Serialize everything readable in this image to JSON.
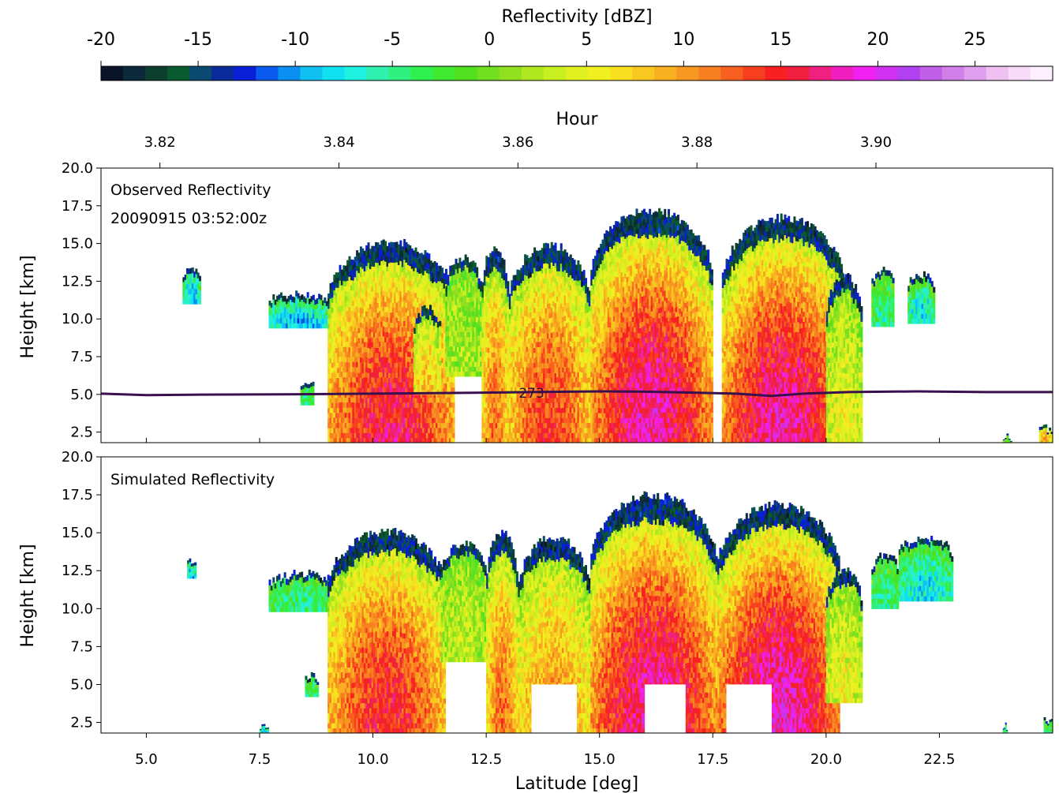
{
  "chart_data": [
    {
      "type": "heatmap",
      "panel": "colorbar",
      "label": "Reflectivity [dBZ]",
      "range": [
        -20,
        29
      ],
      "ticks": [
        -20,
        -15,
        -10,
        -5,
        0,
        5,
        10,
        15,
        20,
        25
      ],
      "colors": [
        "#0a1428",
        "#0c2a3c",
        "#0d3f2e",
        "#0a5a30",
        "#0a4a72",
        "#0a2a9a",
        "#0a1fd8",
        "#0a5af0",
        "#0a90f0",
        "#10c0f0",
        "#10e0f0",
        "#20f0e0",
        "#30f0b0",
        "#30f080",
        "#30f050",
        "#40e830",
        "#50e020",
        "#70e020",
        "#90e020",
        "#b0e820",
        "#c8f020",
        "#e0f020",
        "#f0f020",
        "#f8e020",
        "#f8c820",
        "#f8b020",
        "#f89820",
        "#f88020",
        "#f86020",
        "#f84020",
        "#f82020",
        "#f02040",
        "#f02080",
        "#f020c0",
        "#f020f0",
        "#d030f0",
        "#b040f0",
        "#c060e8",
        "#d080e8",
        "#e0a0f0",
        "#f0c0f0",
        "#f8dcf8",
        "#fff0ff"
      ]
    },
    {
      "type": "heatmap",
      "panel": "top",
      "title_lines": [
        "Observed Reflectivity",
        "20090915 03:52:00z"
      ],
      "ylabel": "Height [km]",
      "xlabel_top": "Hour",
      "xlim": [
        4.0,
        25.0
      ],
      "ylim": [
        1.8,
        20.0
      ],
      "yticks": [
        2.5,
        5.0,
        7.5,
        10.0,
        12.5,
        15.0,
        17.5,
        20.0
      ],
      "ytick_labels": [
        "2.5",
        "5.0",
        "7.5",
        "10.0",
        "12.5",
        "15.0",
        "17.5",
        "20.0"
      ],
      "top_ticks": [
        {
          "hour": 3.82,
          "lat": 5.3,
          "label": "3.82"
        },
        {
          "hour": 3.84,
          "lat": 9.25,
          "label": "3.84"
        },
        {
          "hour": 3.86,
          "lat": 13.2,
          "label": "3.86"
        },
        {
          "hour": 3.88,
          "lat": 17.15,
          "label": "3.88"
        },
        {
          "hour": 3.9,
          "lat": 21.1,
          "label": "3.90"
        }
      ],
      "contour": {
        "label": "273",
        "label_at": [
          13.5,
          5.1
        ],
        "lat": [
          4.0,
          5.0,
          6.0,
          8.0,
          10.0,
          12.0,
          13.5,
          15.0,
          16.0,
          17.0,
          18.0,
          18.8,
          19.5,
          20.5,
          22.0,
          23.5,
          25.0
        ],
        "height": [
          5.05,
          4.95,
          4.98,
          5.0,
          5.05,
          5.1,
          5.15,
          5.2,
          5.18,
          5.12,
          5.05,
          4.9,
          5.05,
          5.15,
          5.2,
          5.15,
          5.15
        ]
      },
      "cells": [
        {
          "lat": [
            5.8,
            6.2
          ],
          "top": 13.6,
          "bottom": 11.0,
          "peak_dbz": -10
        },
        {
          "lat": [
            8.4,
            8.7
          ],
          "top": 6.2,
          "bottom": 4.3,
          "peak_dbz": -5
        },
        {
          "lat": [
            7.7,
            9.0
          ],
          "top": 12.0,
          "bottom": 9.4,
          "peak_dbz": -10
        },
        {
          "lat": [
            9.0,
            11.8
          ],
          "top": 15.4,
          "bottom": 1.8,
          "peak_dbz": 16
        },
        {
          "lat": [
            10.9,
            11.5
          ],
          "top": 11.0,
          "bottom": 5.0,
          "peak_dbz": 8
        },
        {
          "lat": [
            11.6,
            12.4
          ],
          "top": 14.4,
          "bottom": 6.2,
          "peak_dbz": 2
        },
        {
          "lat": [
            12.4,
            13.0
          ],
          "top": 15.2,
          "bottom": 1.8,
          "peak_dbz": 12
        },
        {
          "lat": [
            13.0,
            14.8
          ],
          "top": 15.2,
          "bottom": 1.8,
          "peak_dbz": 14
        },
        {
          "lat": [
            14.8,
            17.5
          ],
          "top": 17.5,
          "bottom": 1.8,
          "peak_dbz": 18
        },
        {
          "lat": [
            17.7,
            20.4
          ],
          "top": 17.0,
          "bottom": 1.8,
          "peak_dbz": 18
        },
        {
          "lat": [
            20.0,
            20.8
          ],
          "top": 13.2,
          "bottom": 1.8,
          "peak_dbz": 5
        },
        {
          "lat": [
            21.0,
            21.5
          ],
          "top": 13.5,
          "bottom": 9.5,
          "peak_dbz": -5
        },
        {
          "lat": [
            21.8,
            22.4
          ],
          "top": 13.2,
          "bottom": 9.7,
          "peak_dbz": -8
        },
        {
          "lat": [
            23.9,
            24.1
          ],
          "top": 2.6,
          "bottom": 1.8,
          "peak_dbz": 0
        },
        {
          "lat": [
            24.7,
            25.0
          ],
          "top": 3.1,
          "bottom": 1.8,
          "peak_dbz": 10
        }
      ]
    },
    {
      "type": "heatmap",
      "panel": "bottom",
      "title_lines": [
        "Simulated Reflectivity"
      ],
      "ylabel": "Height [km]",
      "xlabel": "Latitude [deg]",
      "xlim": [
        4.0,
        25.0
      ],
      "ylim": [
        1.8,
        20.0
      ],
      "xticks": [
        5.0,
        7.5,
        10.0,
        12.5,
        15.0,
        17.5,
        20.0,
        22.5
      ],
      "xtick_labels": [
        "5.0",
        "7.5",
        "10.0",
        "12.5",
        "15.0",
        "17.5",
        "20.0",
        "22.5"
      ],
      "yticks": [
        2.5,
        5.0,
        7.5,
        10.0,
        12.5,
        15.0,
        17.5,
        20.0
      ],
      "ytick_labels": [
        "2.5",
        "5.0",
        "7.5",
        "10.0",
        "12.5",
        "15.0",
        "17.5",
        "20.0"
      ],
      "cells": [
        {
          "lat": [
            5.9,
            6.1
          ],
          "top": 13.5,
          "bottom": 12.0,
          "peak_dbz": -10
        },
        {
          "lat": [
            7.5,
            7.7
          ],
          "top": 2.7,
          "bottom": 1.8,
          "peak_dbz": -10
        },
        {
          "lat": [
            7.7,
            9.2
          ],
          "top": 12.6,
          "bottom": 9.8,
          "peak_dbz": -5
        },
        {
          "lat": [
            8.5,
            8.8
          ],
          "top": 6.0,
          "bottom": 4.2,
          "peak_dbz": -5
        },
        {
          "lat": [
            9.0,
            11.6
          ],
          "top": 15.4,
          "bottom": 1.8,
          "peak_dbz": 15
        },
        {
          "lat": [
            11.5,
            12.5
          ],
          "top": 14.6,
          "bottom": 6.5,
          "peak_dbz": 3
        },
        {
          "lat": [
            12.5,
            13.2
          ],
          "top": 15.4,
          "bottom": 1.8,
          "peak_dbz": 12
        },
        {
          "lat": [
            13.2,
            14.8
          ],
          "top": 15.0,
          "bottom": 1.8,
          "peak_dbz": 10
        },
        {
          "lat": [
            14.8,
            17.6
          ],
          "top": 17.8,
          "bottom": 1.8,
          "peak_dbz": 18
        },
        {
          "lat": [
            17.6,
            20.3
          ],
          "top": 17.2,
          "bottom": 1.8,
          "peak_dbz": 19
        },
        {
          "lat": [
            20.0,
            20.8
          ],
          "top": 12.8,
          "bottom": 3.8,
          "peak_dbz": 5
        },
        {
          "lat": [
            21.0,
            21.6
          ],
          "top": 13.8,
          "bottom": 10.0,
          "peak_dbz": -5
        },
        {
          "lat": [
            21.6,
            22.8
          ],
          "top": 15.0,
          "bottom": 10.5,
          "peak_dbz": -8
        },
        {
          "lat": [
            23.9,
            24.0
          ],
          "top": 2.6,
          "bottom": 1.8,
          "peak_dbz": -5
        },
        {
          "lat": [
            24.8,
            25.0
          ],
          "top": 3.0,
          "bottom": 1.8,
          "peak_dbz": -5
        }
      ],
      "gaps": [
        {
          "lat": [
            13.5,
            14.5
          ],
          "top": 5.0,
          "bottom": 1.8
        },
        {
          "lat": [
            16.0,
            16.9
          ],
          "top": 5.0,
          "bottom": 1.8
        },
        {
          "lat": [
            17.8,
            18.8
          ],
          "top": 5.0,
          "bottom": 1.8
        }
      ]
    }
  ]
}
